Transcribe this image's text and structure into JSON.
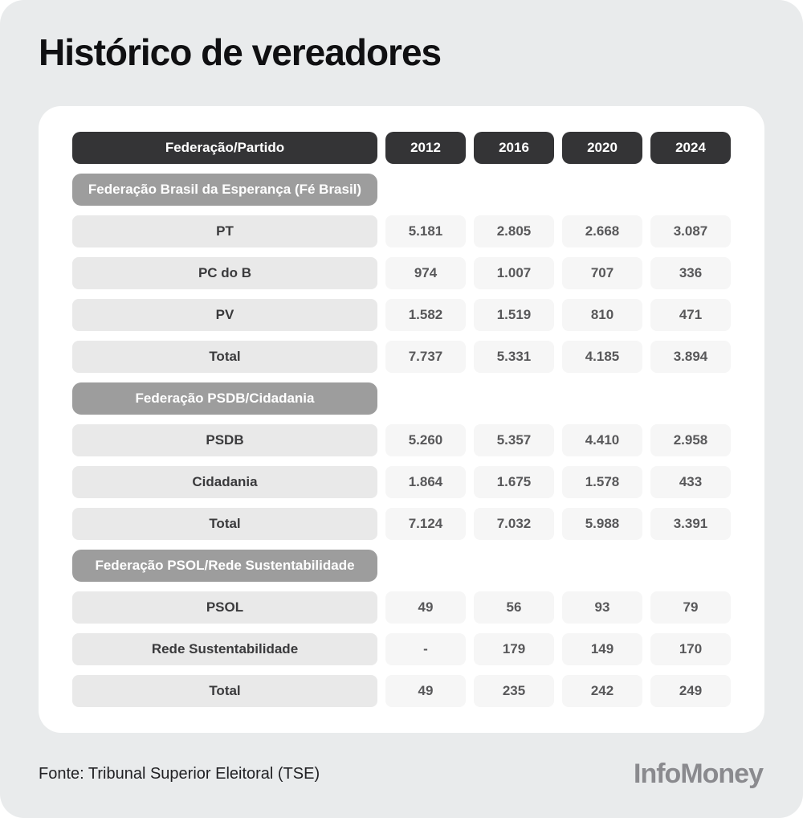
{
  "brand": {
    "logo_text": "InfoMoney"
  },
  "colors": {
    "page_background": "#E9EBEC",
    "card_background": "#FFFFFF",
    "header_pill": "#343436",
    "federation_pill": "#9D9D9D",
    "label_cell": "#E9E9E9",
    "value_cell": "#F6F6F6"
  },
  "chart_data": {
    "type": "table",
    "title": "Histórico de vereadores",
    "source": "Fonte: Tribunal Superior Eleitoral (TSE)",
    "columns": [
      "Federação/Partido",
      "2012",
      "2016",
      "2020",
      "2024"
    ],
    "sections": [
      {
        "federation": "Federação Brasil da Esperança (Fé Brasil)",
        "rows": [
          {
            "label": "PT",
            "values": [
              "5.181",
              "2.805",
              "2.668",
              "3.087"
            ]
          },
          {
            "label": "PC do B",
            "values": [
              "974",
              "1.007",
              "707",
              "336"
            ]
          },
          {
            "label": "PV",
            "values": [
              "1.582",
              "1.519",
              "810",
              "471"
            ]
          },
          {
            "label": "Total",
            "values": [
              "7.737",
              "5.331",
              "4.185",
              "3.894"
            ]
          }
        ]
      },
      {
        "federation": "Federação PSDB/Cidadania",
        "rows": [
          {
            "label": "PSDB",
            "values": [
              "5.260",
              "5.357",
              "4.410",
              "2.958"
            ]
          },
          {
            "label": "Cidadania",
            "values": [
              "1.864",
              "1.675",
              "1.578",
              "433"
            ]
          },
          {
            "label": "Total",
            "values": [
              "7.124",
              "7.032",
              "5.988",
              "3.391"
            ]
          }
        ]
      },
      {
        "federation": "Federação PSOL/Rede Sustentabilidade",
        "rows": [
          {
            "label": "PSOL",
            "values": [
              "49",
              "56",
              "93",
              "79"
            ]
          },
          {
            "label": "Rede Sustentabilidade",
            "values": [
              "-",
              "179",
              "149",
              "170"
            ]
          },
          {
            "label": "Total",
            "values": [
              "49",
              "235",
              "242",
              "249"
            ]
          }
        ]
      }
    ]
  }
}
